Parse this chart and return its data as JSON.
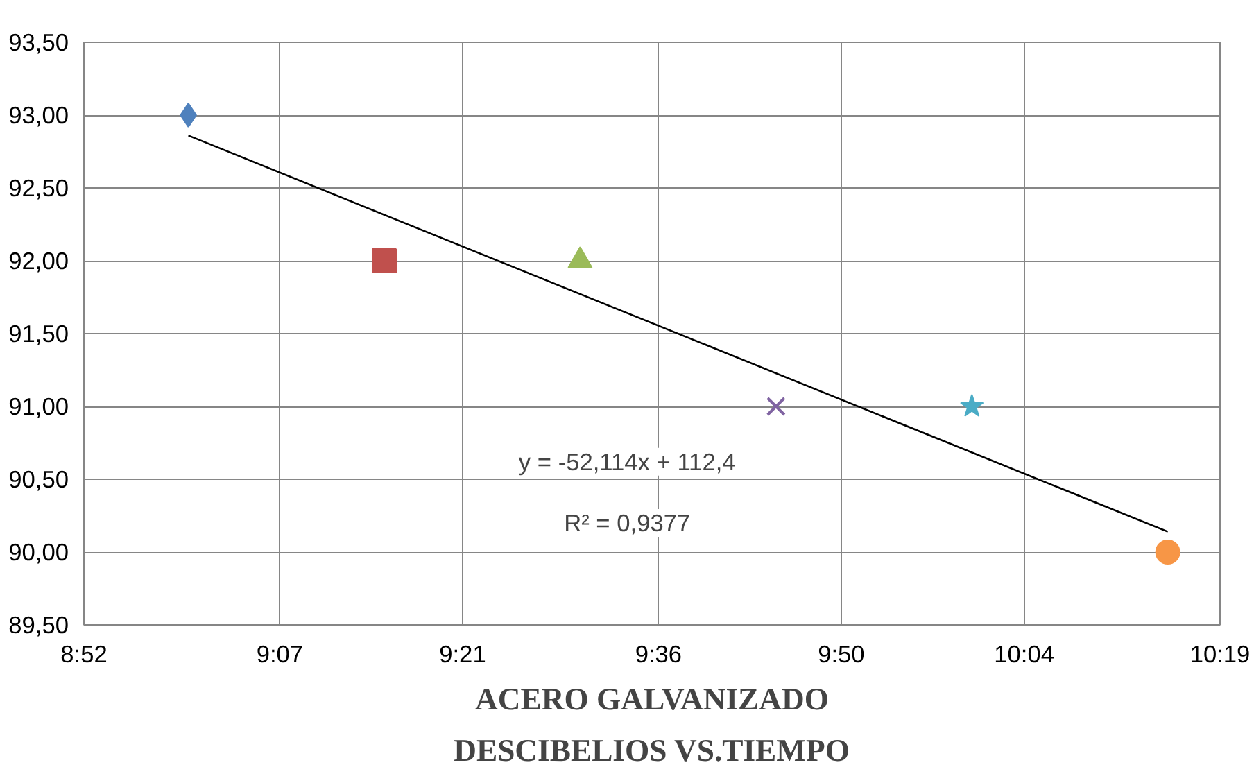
{
  "chart_data": {
    "type": "scatter",
    "title": "ACERO GALVANIZADO",
    "subtitle": "DESCIBELIOS VS.TIEMPO",
    "annotations": [
      "y = -52,114x + 112,4",
      "R² = 0,9377"
    ],
    "series": [
      {
        "color": "#4f81bd",
        "marker": "diamond",
        "x": [
          9.0
        ],
        "values": [
          93.0
        ]
      },
      {
        "color": "#c0504d",
        "marker": "square",
        "x": [
          9.25
        ],
        "values": [
          92.0
        ]
      },
      {
        "color": "#9bbb59",
        "marker": "triangle",
        "x": [
          9.5
        ],
        "values": [
          92.0
        ]
      },
      {
        "color": "#8064a2",
        "marker": "cross",
        "x": [
          9.75
        ],
        "values": [
          91.0
        ]
      },
      {
        "color": "#4bacc6",
        "marker": "star",
        "x": [
          10.0
        ],
        "values": [
          91.0
        ]
      },
      {
        "color": "#f79646",
        "marker": "circle",
        "x": [
          10.25
        ],
        "values": [
          90.0
        ]
      },
      {
        "type": "line",
        "color": "#000000",
        "marker": "none",
        "x": [
          9.0,
          10.25
        ],
        "values": [
          92.86,
          90.14
        ]
      }
    ],
    "xlim": [
      8.8667,
      10.3167
    ],
    "xticks": [
      {
        "value": 8.8667,
        "label": "8:52"
      },
      {
        "value": 9.1167,
        "label": "9:07"
      },
      {
        "value": 9.35,
        "label": "9:21"
      },
      {
        "value": 9.6,
        "label": "9:36"
      },
      {
        "value": 9.8333,
        "label": "9:50"
      },
      {
        "value": 10.0667,
        "label": "10:04"
      },
      {
        "value": 10.3167,
        "label": "10:19"
      }
    ],
    "ylim": [
      89.5,
      93.5
    ],
    "yticks": [
      {
        "value": 89.5,
        "label": "89,50"
      },
      {
        "value": 90.0,
        "label": "90,00"
      },
      {
        "value": 90.5,
        "label": "90,50"
      },
      {
        "value": 91.0,
        "label": "91,00"
      },
      {
        "value": 91.5,
        "label": "91,50"
      },
      {
        "value": 92.0,
        "label": "92,00"
      },
      {
        "value": 92.5,
        "label": "92,50"
      },
      {
        "value": 93.0,
        "label": "93,00"
      },
      {
        "value": 93.5,
        "label": "93,50"
      }
    ],
    "grid": true
  }
}
